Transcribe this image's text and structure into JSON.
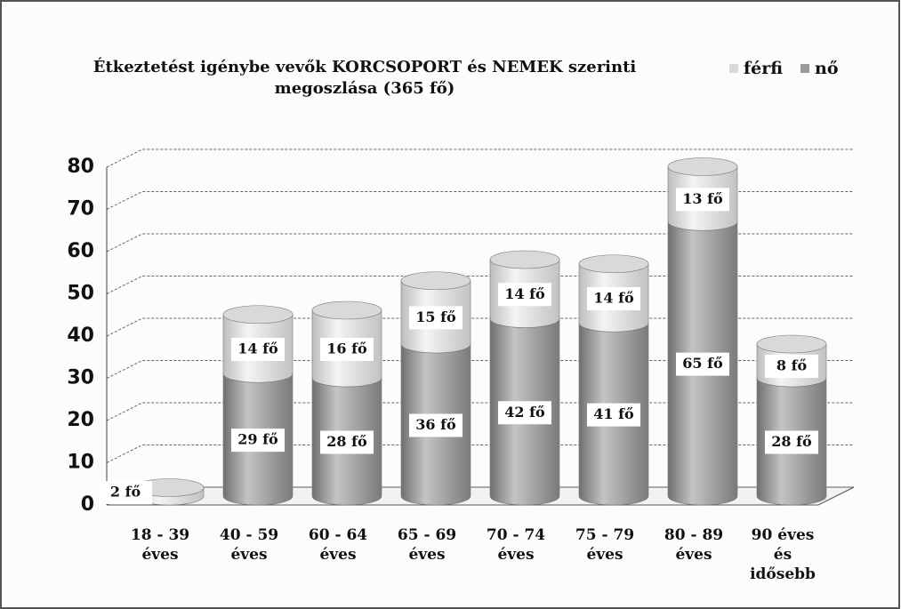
{
  "chart_data": {
    "type": "bar",
    "title": [
      "Étkeztetést igénybe vevők KORCSOPORT és NEMEK szerinti",
      "megoszlása (365 fő)"
    ],
    "categories": [
      [
        "18 - 39",
        "éves"
      ],
      [
        "40 - 59",
        "éves"
      ],
      [
        "60 - 64",
        "éves"
      ],
      [
        "65 - 69",
        "éves"
      ],
      [
        "70 - 74",
        "éves"
      ],
      [
        "75 - 79",
        "éves"
      ],
      [
        "80 - 89",
        "éves"
      ],
      [
        "90 éves",
        "és",
        "idősebb"
      ]
    ],
    "series": [
      {
        "name": "nő",
        "color": "#9a9a9a",
        "values": [
          0,
          29,
          28,
          36,
          42,
          41,
          65,
          28
        ],
        "value_labels": [
          null,
          "29 fő",
          "28 fő",
          "36 fő",
          "42 fő",
          "41 fő",
          "65 fő",
          "28 fő"
        ]
      },
      {
        "name": "férfi",
        "color": "#d9d9d9",
        "values": [
          2,
          14,
          16,
          15,
          14,
          14,
          13,
          8
        ],
        "value_labels": [
          "2 fő",
          "14 fő",
          "16 fő",
          "15 fő",
          "14 fő",
          "14 fő",
          "13 fő",
          "8 fő"
        ]
      }
    ],
    "legend_order": [
      "férfi",
      "nő"
    ],
    "stacked": true,
    "ylim": [
      0,
      80
    ],
    "yticks": [
      0,
      10,
      20,
      30,
      40,
      50,
      60,
      70,
      80
    ],
    "grid": true,
    "legend": "top-right"
  }
}
